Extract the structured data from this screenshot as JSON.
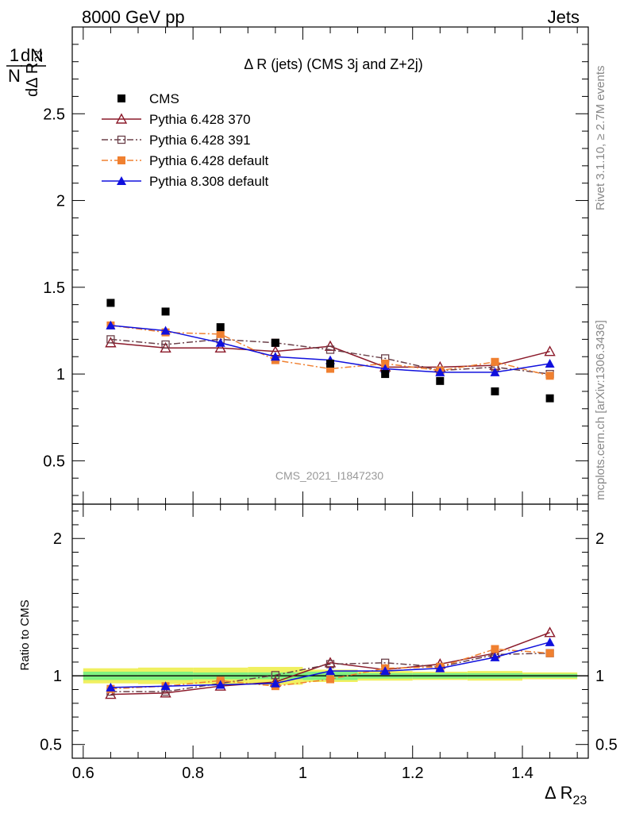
{
  "header": {
    "left": "8000 GeV pp",
    "right": "Jets"
  },
  "side_text": {
    "rivet": "Rivet 3.1.10, ≥ 2.7M events",
    "mcplots": "mcplots.cern.ch [arXiv:1306.3436]"
  },
  "chart_data": {
    "type": "scatter",
    "title": "Δ R (jets) (CMS 3j and Z+2j)",
    "analysis_tag": "CMS_2021_I1847230",
    "ylabel": "1/N dN/dΔR23",
    "xlabel": "Δ R23",
    "ratio_ylabel": "Ratio to CMS",
    "xlim": [
      0.58,
      1.52
    ],
    "ylim": [
      0.25,
      3.0
    ],
    "ratio_ylim": [
      0.4,
      2.25
    ],
    "log_y": false,
    "grid": false,
    "legend_position": "top-left",
    "x_ticks": [
      "0.6",
      "0.8",
      "1",
      "1.2",
      "1.4"
    ],
    "y_ticks": [
      "0.5",
      "1",
      "1.5",
      "2",
      "2.5"
    ],
    "ratio_y_ticks": [
      "0.5",
      "1",
      "2"
    ],
    "x": [
      0.65,
      0.75,
      0.85,
      0.95,
      1.05,
      1.15,
      1.25,
      1.35,
      1.45
    ],
    "series": [
      {
        "name": "CMS",
        "color": "#000000",
        "marker": "filled-square",
        "line": "none",
        "values": [
          1.41,
          1.36,
          1.27,
          1.18,
          1.06,
          1.0,
          0.96,
          0.9,
          0.86
        ],
        "ratio": [
          1.0,
          1.0,
          1.0,
          1.0,
          1.0,
          1.0,
          1.0,
          1.0,
          1.0
        ]
      },
      {
        "name": "Pythia 6.428 370",
        "color": "#8b1a2a",
        "marker": "open-triangle",
        "line": "solid",
        "values": [
          1.18,
          1.15,
          1.15,
          1.13,
          1.16,
          1.04,
          1.04,
          1.05,
          1.13
        ],
        "ratio": [
          0.865,
          0.875,
          0.925,
          0.955,
          1.095,
          1.045,
          1.085,
          1.165,
          1.315
        ]
      },
      {
        "name": "Pythia 6.428 391",
        "color": "#6b4049",
        "marker": "open-square",
        "line": "dashdot",
        "values": [
          1.2,
          1.17,
          1.2,
          1.18,
          1.14,
          1.09,
          1.02,
          1.04,
          1.0
        ],
        "ratio": [
          0.885,
          0.885,
          0.945,
          1.005,
          1.085,
          1.095,
          1.065,
          1.155,
          1.165
        ]
      },
      {
        "name": "Pythia 6.428 default",
        "color": "#f08030",
        "marker": "filled-square",
        "line": "dashdot",
        "values": [
          1.28,
          1.24,
          1.23,
          1.08,
          1.03,
          1.06,
          1.02,
          1.07,
          0.99
        ],
        "ratio": [
          0.905,
          0.925,
          0.965,
          0.925,
          0.975,
          1.055,
          1.065,
          1.195,
          1.165
        ]
      },
      {
        "name": "Pythia 8.308 default",
        "color": "#1010dd",
        "marker": "filled-triangle",
        "line": "solid",
        "values": [
          1.28,
          1.25,
          1.18,
          1.1,
          1.08,
          1.03,
          1.01,
          1.01,
          1.06
        ],
        "ratio": [
          0.915,
          0.925,
          0.935,
          0.945,
          1.035,
          1.035,
          1.055,
          1.135,
          1.245
        ]
      }
    ],
    "ratio_bands": {
      "green_halfwidth": [
        0.03,
        0.03,
        0.025,
        0.025,
        0.03,
        0.02,
        0.02,
        0.02,
        0.015
      ],
      "yellow_halfwidth": [
        0.055,
        0.06,
        0.06,
        0.065,
        0.045,
        0.035,
        0.03,
        0.035,
        0.025
      ],
      "green_color": "#80f080",
      "yellow_color": "#f0f060"
    }
  }
}
